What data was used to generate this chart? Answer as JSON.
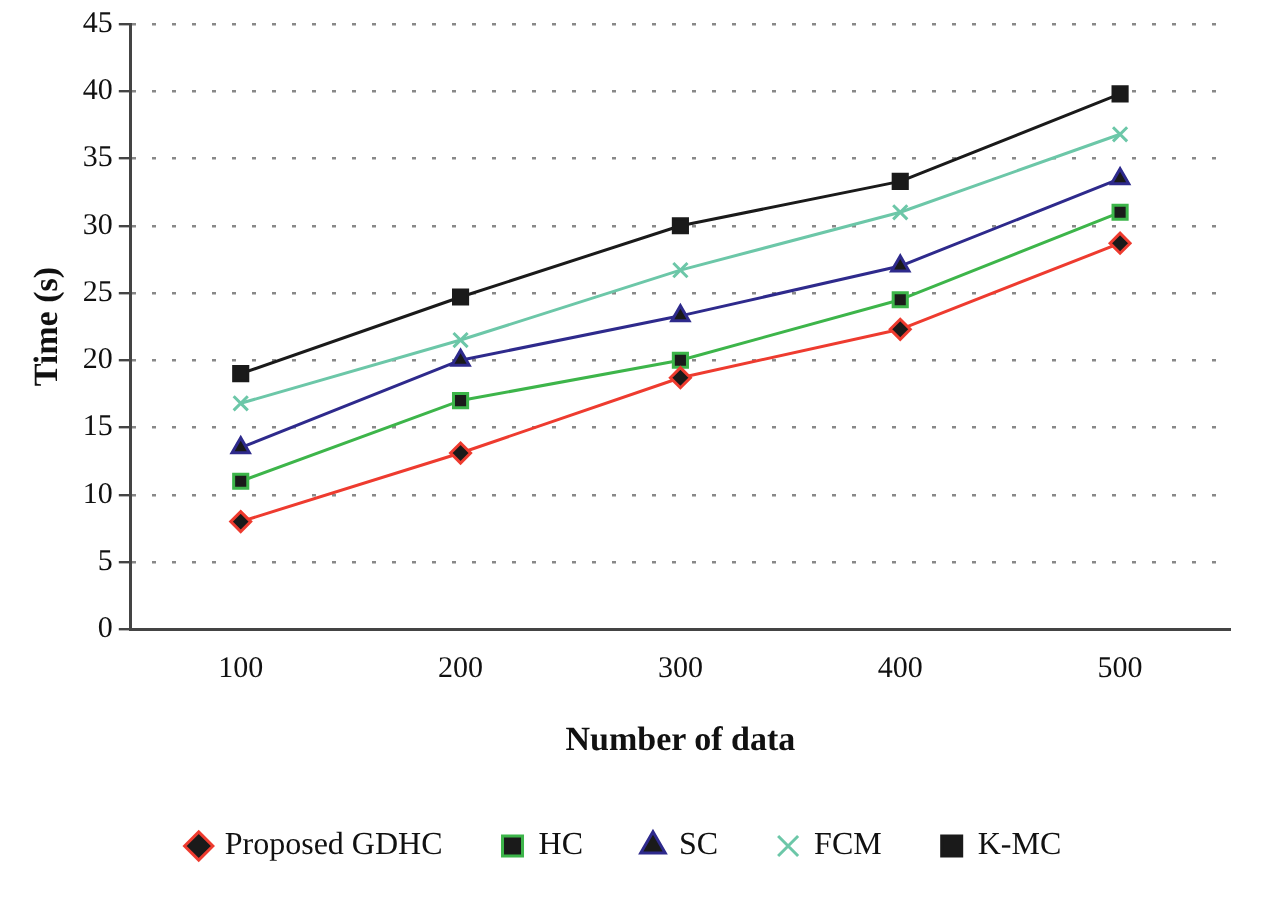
{
  "chart_data": {
    "type": "line",
    "xlabel": "Number of data",
    "ylabel": "Time (s)",
    "categories": [
      "100",
      "200",
      "300",
      "400",
      "500"
    ],
    "ylim": [
      0,
      45
    ],
    "yticks": [
      0,
      5,
      10,
      15,
      20,
      25,
      30,
      35,
      40,
      45
    ],
    "grid": "y",
    "legend": "bottom",
    "series": [
      {
        "name": "Proposed GDHC",
        "color": "#ee3b2f",
        "marker": "diamond",
        "values": [
          8.0,
          13.1,
          18.7,
          22.3,
          28.7
        ]
      },
      {
        "name": "HC",
        "color": "#3db54a",
        "marker": "square",
        "values": [
          11.0,
          17.0,
          20.0,
          24.5,
          31.0
        ]
      },
      {
        "name": "SC",
        "color": "#2e2a8c",
        "marker": "triangle",
        "values": [
          13.5,
          20.0,
          23.3,
          27.0,
          33.5
        ]
      },
      {
        "name": "FCM",
        "color": "#6cc7a8",
        "marker": "cross",
        "values": [
          16.8,
          21.5,
          26.7,
          31.0,
          36.8
        ]
      },
      {
        "name": "K-MC",
        "color": "#1a1a1a",
        "marker": "square",
        "values": [
          19.0,
          24.7,
          30.0,
          33.3,
          39.8
        ]
      }
    ]
  }
}
